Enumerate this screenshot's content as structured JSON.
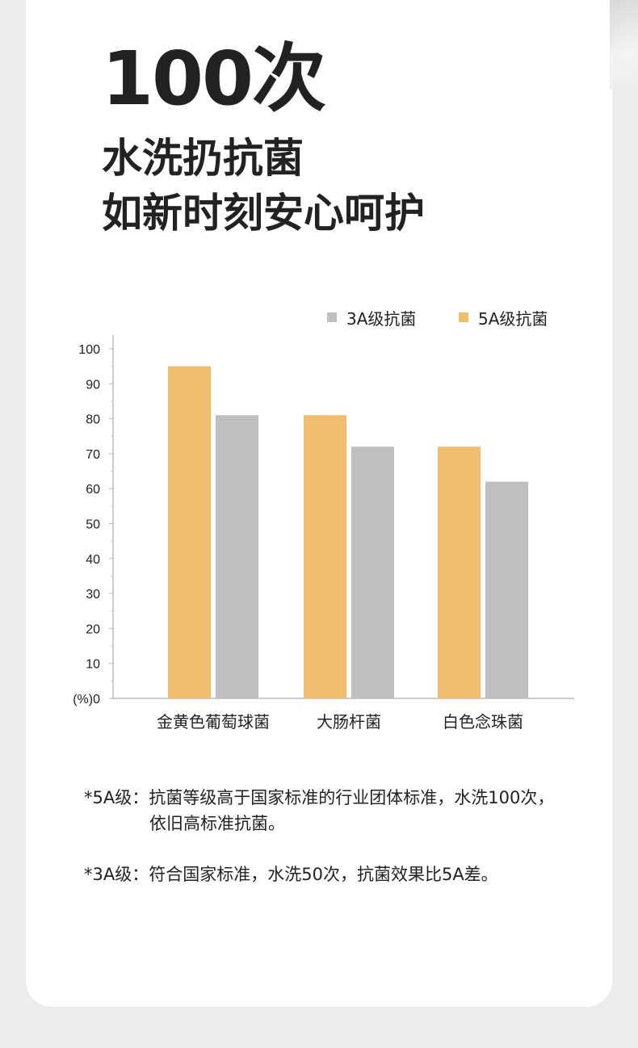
{
  "headline": {
    "big": "100次",
    "line1": "水洗扔抗菌",
    "line2": "如新时刻安心呵护"
  },
  "chart_data": {
    "type": "bar",
    "categories": [
      "金黄色葡萄球菌",
      "大肠杆菌",
      "白色念珠菌"
    ],
    "series": [
      {
        "name": "5A级抗菌",
        "color": "#f0bc6f",
        "values": [
          95,
          81,
          72
        ]
      },
      {
        "name": "3A级抗菌",
        "color": "#bfbfbf",
        "values": [
          81,
          72,
          62
        ]
      }
    ],
    "legend_order": [
      "3A级抗菌",
      "5A级抗菌"
    ],
    "legend_placement": "top-right",
    "ylabel": "(%)",
    "yticks": [
      0,
      10,
      20,
      30,
      40,
      50,
      60,
      70,
      80,
      90,
      100
    ],
    "ylim": [
      0,
      100
    ],
    "grid": false
  },
  "notes": [
    {
      "label": "*5A级：",
      "text1": "抗菌等级高于国家标准的行业团体标准，水洗100次，",
      "text2": "依旧高标准抗菌。"
    },
    {
      "label": "*3A级：",
      "text1": "符合国家标准，水洗50次，抗菌效果比5A差。"
    }
  ]
}
